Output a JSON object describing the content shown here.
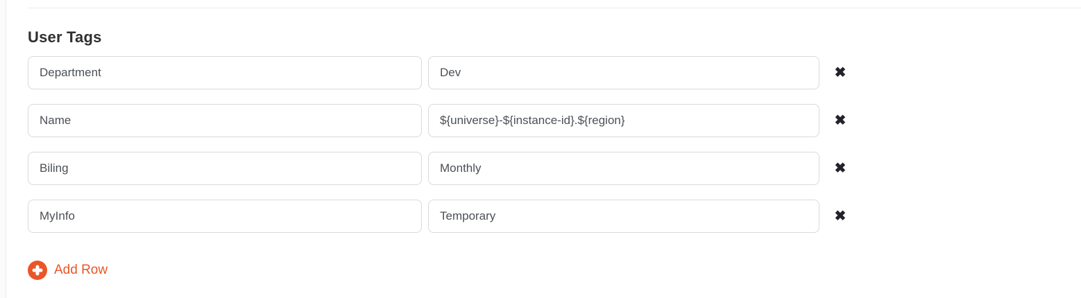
{
  "user_tags": {
    "heading": "User Tags",
    "rows": [
      {
        "key": "Department",
        "value": "Dev"
      },
      {
        "key": "Name",
        "value": "${universe}-${instance-id}.${region}"
      },
      {
        "key": "Biling",
        "value": "Monthly"
      },
      {
        "key": "MyInfo",
        "value": "Temporary"
      }
    ],
    "icons": {
      "remove": "✖"
    },
    "add_row_label": "Add Row"
  },
  "colors": {
    "accent_orange": "#ea5627",
    "input_border": "#d6dade",
    "input_text": "#4b5056",
    "heading_text": "#2f2f31",
    "remove_icon": "#232229",
    "divider": "#ececec"
  }
}
